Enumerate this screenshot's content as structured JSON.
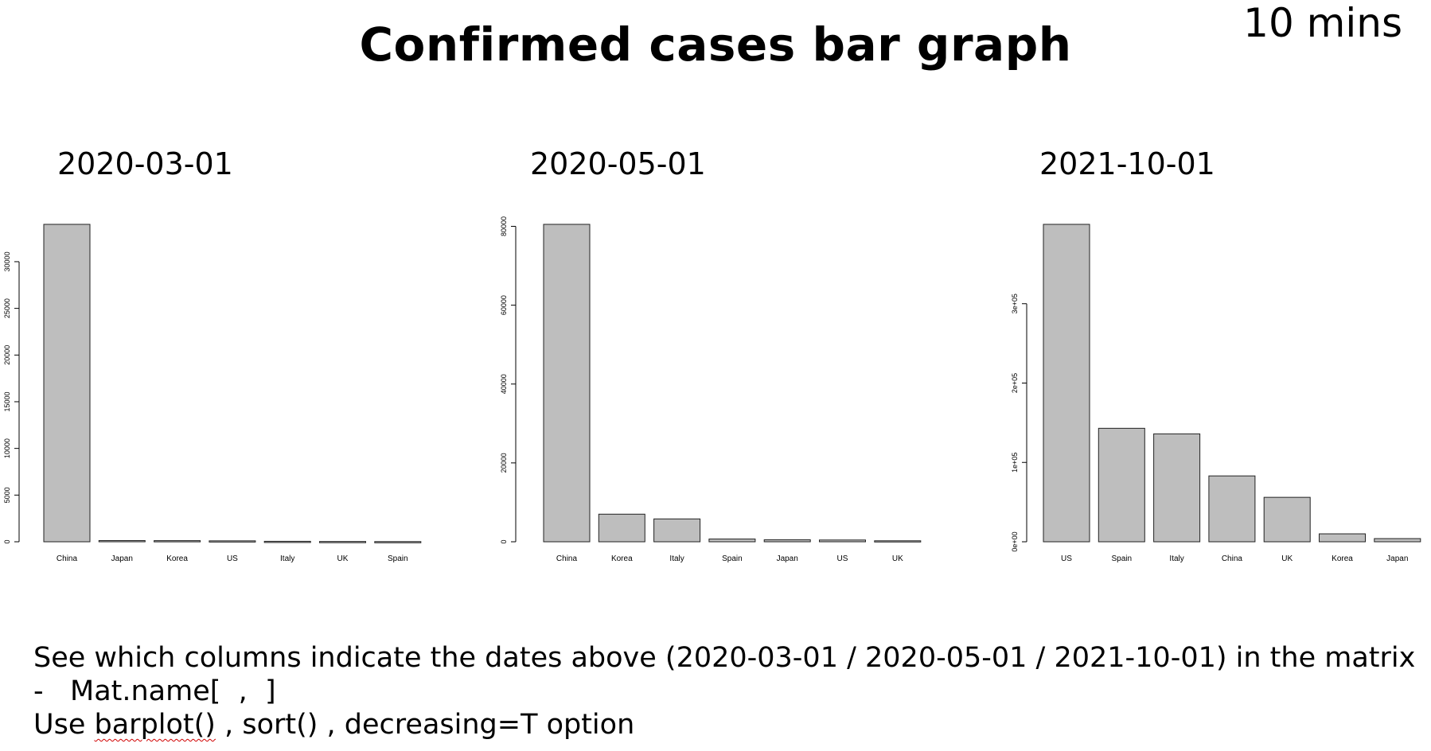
{
  "slide": {
    "title": "Confirmed cases bar graph",
    "timer": "10 mins",
    "instructions": {
      "line1": "See which columns indicate the dates above (2020-03-01 / 2020-05-01 / 2021-10-01) in the matrix",
      "line2": "-   Mat.name[  ,  ]",
      "line3_prefix": "Use ",
      "line3_fn": "barplot()",
      "line3_suffix": " , sort() , decreasing=T option"
    }
  },
  "chart_data": [
    {
      "type": "bar",
      "title": "2020-03-01",
      "categories": [
        "China",
        "Japan",
        "Korea",
        "US",
        "Italy",
        "UK",
        "Spain"
      ],
      "values": [
        34000,
        130,
        120,
        100,
        50,
        30,
        20
      ],
      "ylim": [
        0,
        34000
      ],
      "yticks": [
        0,
        5000,
        10000,
        15000,
        20000,
        25000,
        30000
      ],
      "ytick_labels": [
        "0",
        "5000",
        "10000",
        "15000",
        "20000",
        "25000",
        "30000"
      ],
      "grid": false,
      "bar_color": "#bebebe"
    },
    {
      "type": "bar",
      "title": "2020-05-01",
      "categories": [
        "China",
        "Korea",
        "Italy",
        "Spain",
        "Japan",
        "US",
        "UK"
      ],
      "values": [
        80500,
        7000,
        5800,
        700,
        500,
        450,
        250
      ],
      "ylim": [
        0,
        80500
      ],
      "yticks": [
        0,
        20000,
        40000,
        60000,
        80000
      ],
      "ytick_labels": [
        "0",
        "20000",
        "40000",
        "60000",
        "80000"
      ],
      "grid": false,
      "bar_color": "#bebebe"
    },
    {
      "type": "bar",
      "title": "2021-10-01",
      "categories": [
        "US",
        "Spain",
        "Italy",
        "China",
        "UK",
        "Korea",
        "Japan"
      ],
      "values": [
        400000,
        143000,
        136000,
        83000,
        56000,
        10000,
        4000
      ],
      "ylim": [
        0,
        400000
      ],
      "yticks": [
        0,
        100000,
        200000,
        300000
      ],
      "ytick_labels": [
        "0e+00",
        "1e+05",
        "2e+05",
        "3e+05"
      ],
      "grid": false,
      "bar_color": "#bebebe"
    }
  ]
}
